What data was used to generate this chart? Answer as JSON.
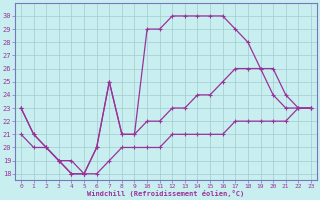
{
  "xlabel": "Windchill (Refroidissement éolien,°C)",
  "bg_color": "#c8eef0",
  "grid_color": "#a0ccd0",
  "line_color": "#993399",
  "spine_color": "#7777bb",
  "xlim": [
    -0.5,
    23.5
  ],
  "ylim": [
    17.5,
    31.0
  ],
  "xticks": [
    0,
    1,
    2,
    3,
    4,
    5,
    6,
    7,
    8,
    9,
    10,
    11,
    12,
    13,
    14,
    15,
    16,
    17,
    18,
    19,
    20,
    21,
    22,
    23
  ],
  "yticks": [
    18,
    19,
    20,
    21,
    22,
    23,
    24,
    25,
    26,
    27,
    28,
    29,
    30
  ],
  "curves": [
    {
      "x": [
        0,
        1,
        2,
        3,
        4,
        5,
        6,
        7,
        8,
        9,
        10,
        11,
        12,
        13,
        14,
        15,
        16,
        17,
        18,
        19,
        20,
        21,
        22,
        23
      ],
      "y": [
        23,
        21,
        20,
        19,
        18,
        18,
        20,
        25,
        21,
        21,
        29,
        29,
        30,
        30,
        30,
        30,
        30,
        29,
        28,
        26,
        24,
        23,
        23,
        23
      ]
    },
    {
      "x": [
        0,
        1,
        2,
        3,
        4,
        5,
        6,
        7,
        8,
        9,
        10,
        11,
        12,
        13,
        14,
        15,
        16,
        17,
        18,
        19,
        20,
        21,
        22,
        23
      ],
      "y": [
        23,
        21,
        20,
        19,
        18,
        18,
        20,
        25,
        21,
        21,
        22,
        22,
        23,
        23,
        24,
        24,
        25,
        26,
        26,
        26,
        26,
        24,
        23,
        23
      ]
    },
    {
      "x": [
        0,
        1,
        2,
        3,
        4,
        5,
        6,
        7,
        8,
        9,
        10,
        11,
        12,
        13,
        14,
        15,
        16,
        17,
        18,
        19,
        20,
        21,
        22,
        23
      ],
      "y": [
        21,
        20,
        20,
        19,
        19,
        18,
        18,
        19,
        20,
        20,
        20,
        20,
        21,
        21,
        21,
        21,
        21,
        22,
        22,
        22,
        22,
        22,
        23,
        23
      ]
    }
  ]
}
